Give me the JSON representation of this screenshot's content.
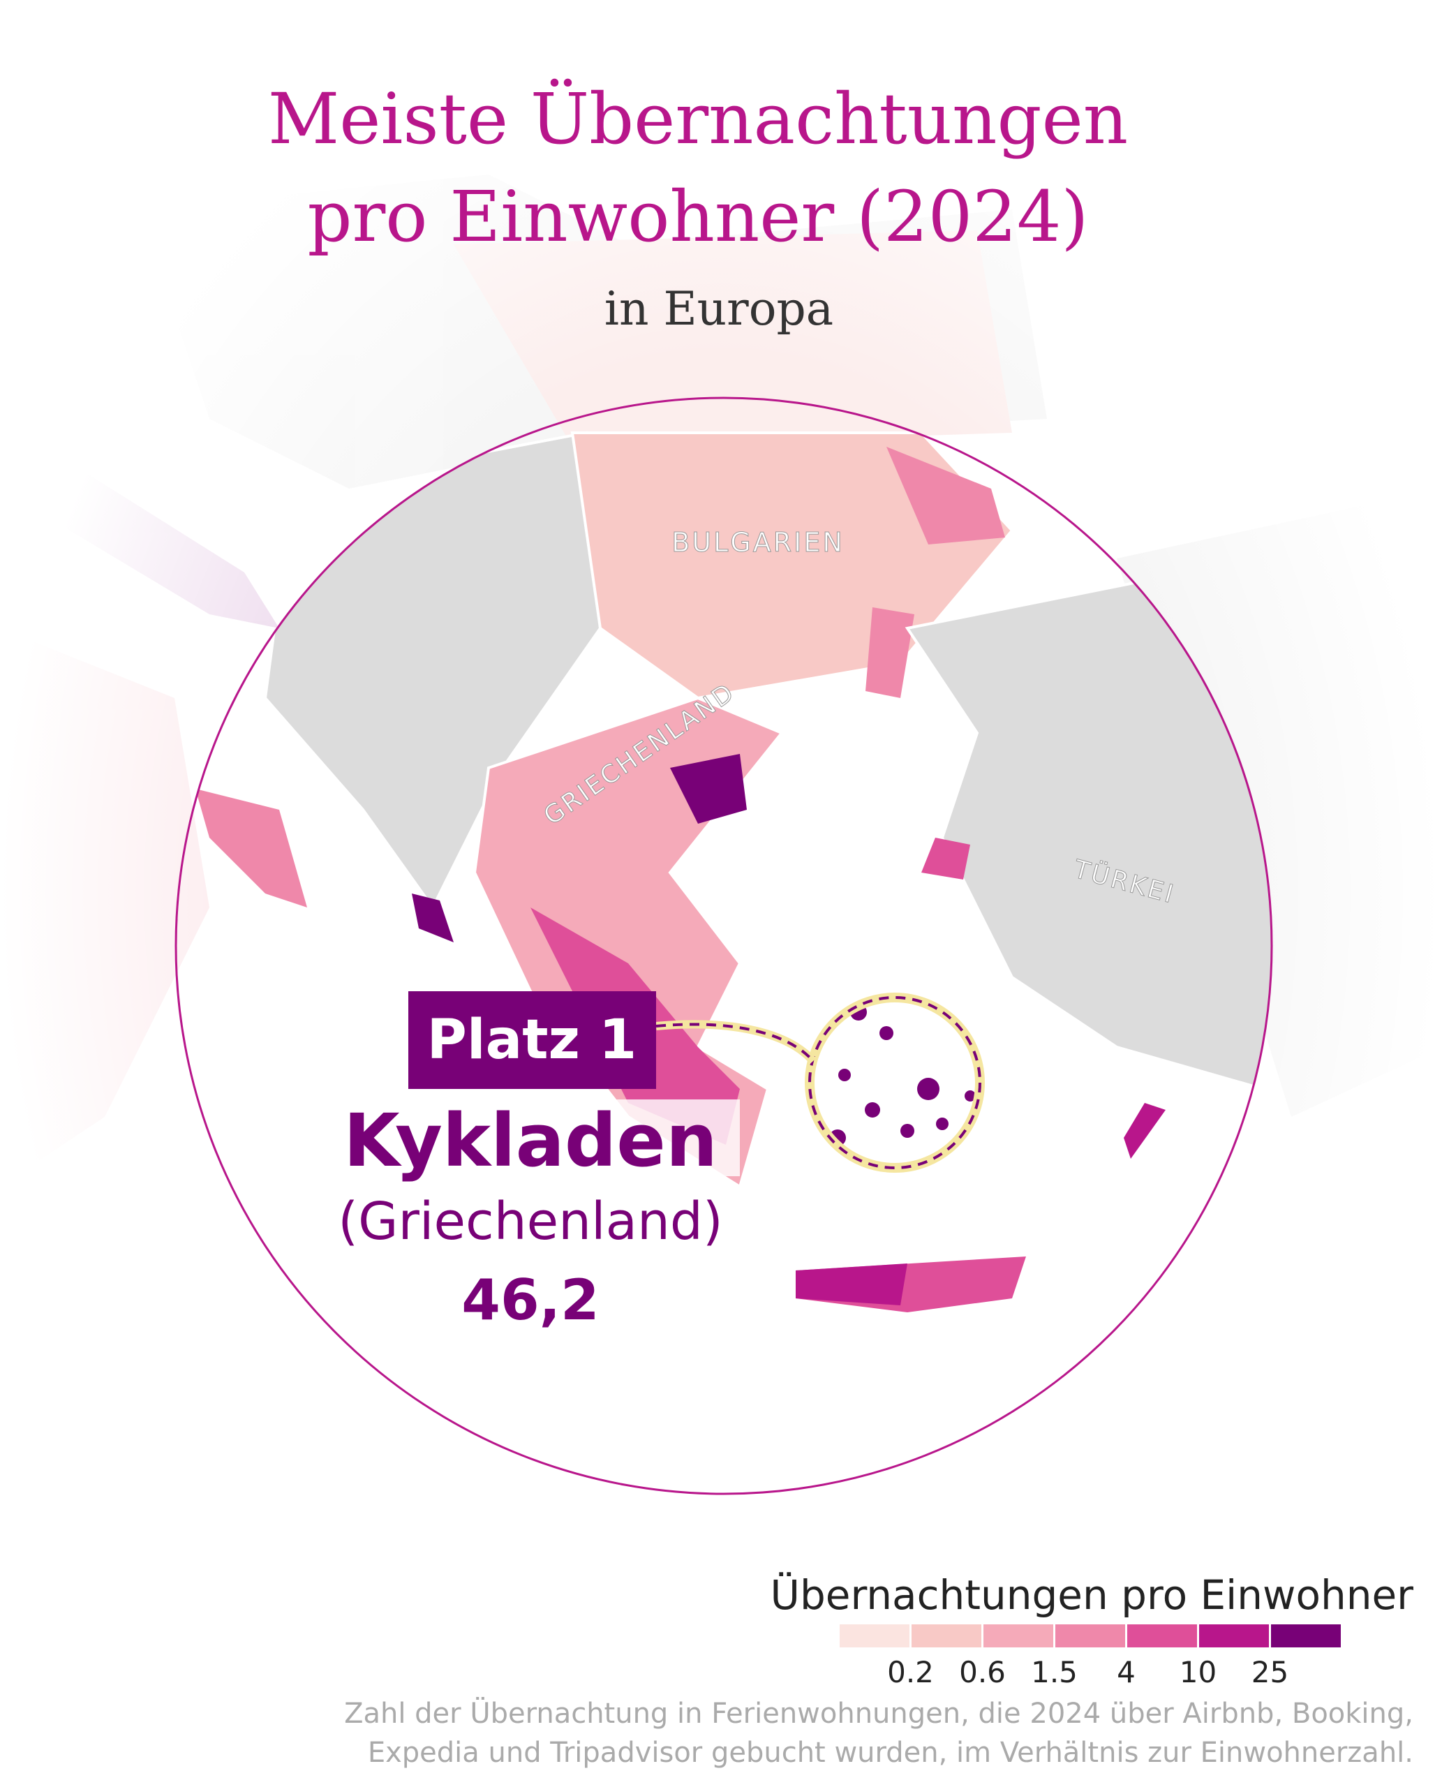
{
  "header": {
    "title_line1": "Meiste Übernachtungen",
    "title_line2": "pro Einwohner (2024)",
    "subtitle": "in Europa"
  },
  "map": {
    "country_labels": [
      "Bulgarien",
      "Griechenland",
      "Türkei"
    ]
  },
  "highlight": {
    "rank_label": "Platz 1",
    "region": "Kykladen",
    "country": "(Griechenland)",
    "value": "46,2"
  },
  "legend": {
    "title": "Übernachtungen pro Einwohner",
    "colors": [
      "#fbe4e0",
      "#f8c9c6",
      "#f5aab9",
      "#ef88aa",
      "#df4f99",
      "#b8168b",
      "#780177"
    ],
    "ticks": [
      "0.2",
      "0.6",
      "1.5",
      "4",
      "10",
      "25"
    ]
  },
  "source": {
    "line1": "Zahl der Übernachtung in Ferienwohnungen, die 2024 über Airbnb, Booking,",
    "line2": "Expedia und Tripadvisor gebucht wurden, im Verhältnis zur Einwohnerzahl."
  }
}
